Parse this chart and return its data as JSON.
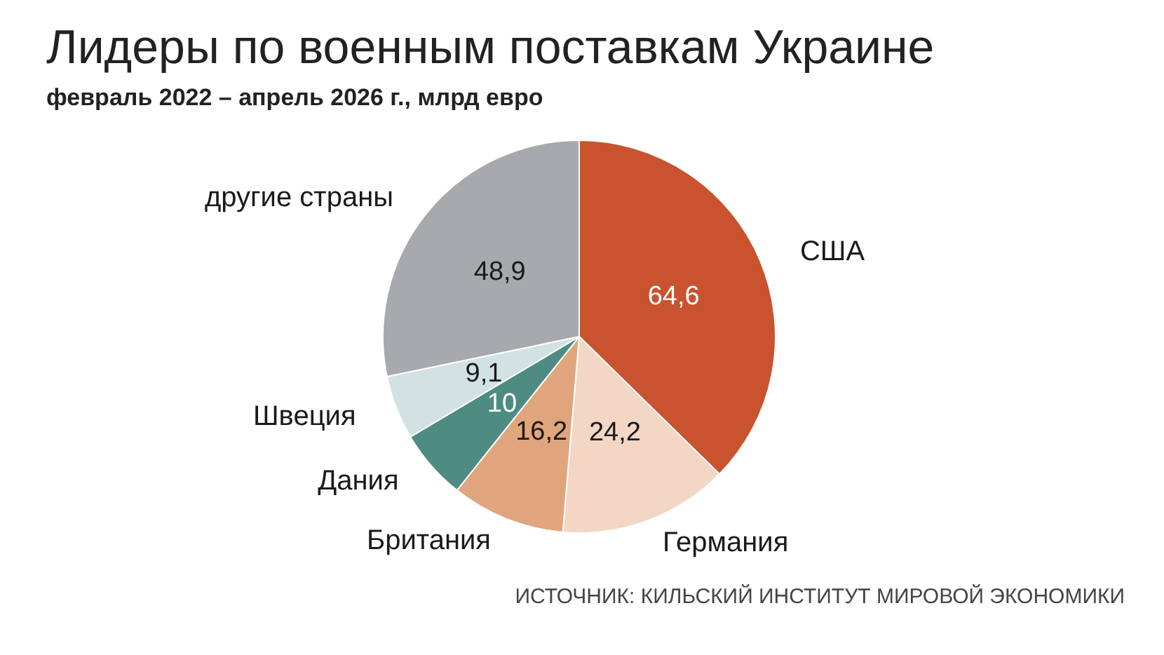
{
  "chart_data": {
    "type": "pie",
    "title": "Лидеры по военным поставкам Украине",
    "subtitle": "февраль 2022 – апрель 2026 г., млрд евро",
    "categories": [
      "США",
      "Германия",
      "Британия",
      "Дания",
      "Швеция",
      "другие страны"
    ],
    "values": [
      64.6,
      24.2,
      16.2,
      10,
      9.1,
      48.9
    ],
    "colors": [
      "#c9522f",
      "#f3d6c4",
      "#e1a57d",
      "#4e8b81",
      "#d2e2e2",
      "#a7a9ac"
    ],
    "value_labels": [
      "64,6",
      "24,2",
      "16,2",
      "10",
      "9,1",
      "48,9"
    ],
    "legend": false,
    "annotations": [
      "ИСТОЧНИК: КИЛЬСКИЙ ИНСТИТУТ МИРОВОЙ ЭКОНОМИКИ"
    ]
  }
}
